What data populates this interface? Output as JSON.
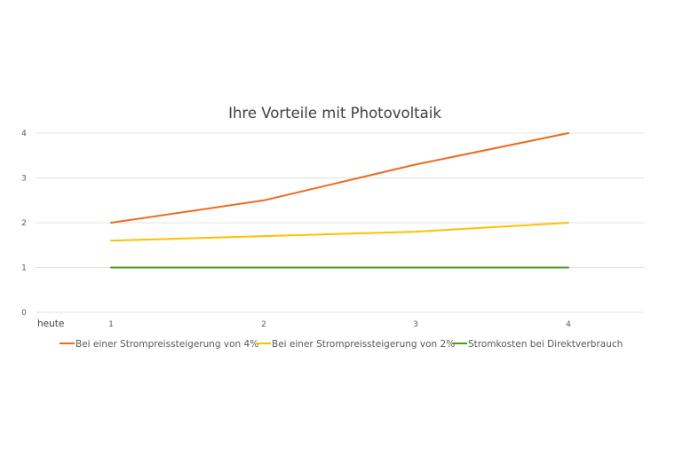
{
  "chart_data": {
    "type": "line",
    "title": "Ihre Vorteile mit Photovoltaik",
    "xlabel": "",
    "ylabel": "",
    "x_axis_first_label": "heute",
    "categories": [
      "1",
      "2",
      "3",
      "4"
    ],
    "y_ticks": [
      "0",
      "1",
      "2",
      "3",
      "4"
    ],
    "ylim": [
      0,
      4
    ],
    "grid": true,
    "legend_position": "bottom",
    "series": [
      {
        "name": "Bei einer Strompreissteigerung von 4%",
        "color": "#ED6B1F",
        "values": [
          2.0,
          2.5,
          3.3,
          4.0
        ]
      },
      {
        "name": "Bei einer Strompreissteigerung von 2%",
        "color": "#FFC000",
        "values": [
          1.6,
          1.7,
          1.8,
          2.0
        ]
      },
      {
        "name": "Stromkosten bei Direktverbrauch",
        "color": "#4E9A1F",
        "values": [
          1.0,
          1.0,
          1.0,
          1.0
        ]
      }
    ]
  }
}
